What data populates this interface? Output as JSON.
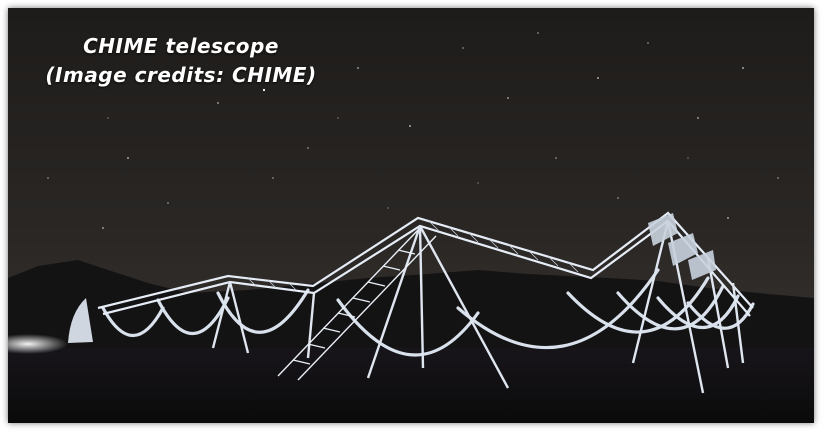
{
  "caption": {
    "line1": "CHIME telescope",
    "line2": "(Image credits: CHIME)"
  },
  "scene": {
    "subject": "radio telescope with cylindrical reflectors at night",
    "colors": {
      "sky_top": "#1f1d1b",
      "sky_bottom": "#3a3633",
      "structure": "#dfe6f0",
      "ground": "#0d0c0b"
    }
  }
}
